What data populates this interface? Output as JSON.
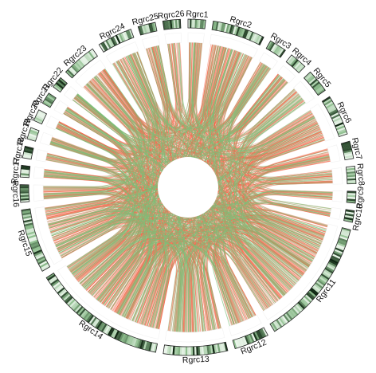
{
  "figure": {
    "kind": "circos-collinearity",
    "colors": {
      "density_low": "#eaf5ea",
      "density_mid": "#8fbf8f",
      "density_high": "#0d2410",
      "outline": "#222222",
      "link_primary": "#f36b4d",
      "link_secondary": "#7cc17a"
    }
  },
  "chromosomes": [
    {
      "name": "Rgrc1",
      "size": 3
    },
    {
      "name": "Rgrc2",
      "size": 9
    },
    {
      "name": "Rgrc3",
      "size": 3
    },
    {
      "name": "Rgrc4",
      "size": 3
    },
    {
      "name": "Rgrc5",
      "size": 4
    },
    {
      "name": "Rgrc6",
      "size": 7
    },
    {
      "name": "Rgrc7",
      "size": 3
    },
    {
      "name": "Rgrc8",
      "size": 3
    },
    {
      "name": "Rgrc9",
      "size": 2
    },
    {
      "name": "Rgrc10",
      "size": 2
    },
    {
      "name": "Rgrc11",
      "size": 22
    },
    {
      "name": "Rgrc12",
      "size": 6
    },
    {
      "name": "Rgrc13",
      "size": 11
    },
    {
      "name": "Rgrc14",
      "size": 23
    },
    {
      "name": "Rgrc15",
      "size": 11
    },
    {
      "name": "Rgrc16",
      "size": 3
    },
    {
      "name": "Rgrc17",
      "size": 2
    },
    {
      "name": "Rgrc18",
      "size": 2
    },
    {
      "name": "Rgrc19",
      "size": 2
    },
    {
      "name": "Rgrc20",
      "size": 2
    },
    {
      "name": "Rgrc21",
      "size": 2
    },
    {
      "name": "Rgrc22",
      "size": 2
    },
    {
      "name": "Rgrc23",
      "size": 6
    },
    {
      "name": "Rgrc24",
      "size": 6
    },
    {
      "name": "Rgrc25",
      "size": 3
    },
    {
      "name": "Rgrc26",
      "size": 3
    }
  ]
}
